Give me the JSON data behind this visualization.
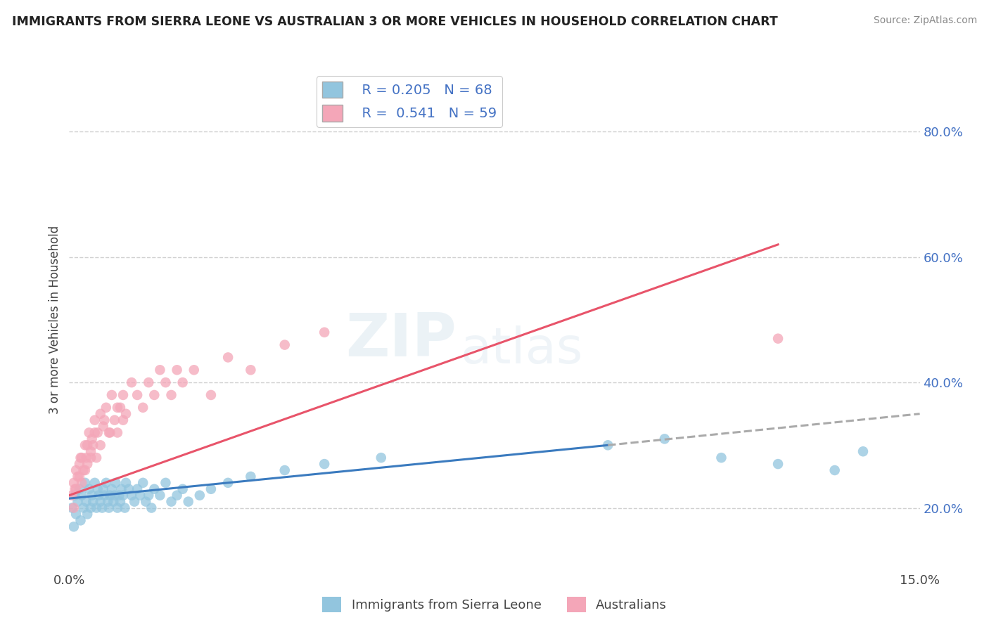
{
  "title": "IMMIGRANTS FROM SIERRA LEONE VS AUSTRALIAN 3 OR MORE VEHICLES IN HOUSEHOLD CORRELATION CHART",
  "source": "Source: ZipAtlas.com",
  "ylabel": "3 or more Vehicles in Household",
  "blue_R": 0.205,
  "blue_N": 68,
  "pink_R": 0.541,
  "pink_N": 59,
  "xlim": [
    0.0,
    15.0
  ],
  "ylim": [
    10.0,
    90.0
  ],
  "yticklabels_right_vals": [
    20,
    40,
    60,
    80
  ],
  "blue_color": "#92c5de",
  "pink_color": "#f4a6b8",
  "blue_line_color": "#3b7bbf",
  "pink_line_color": "#e8546a",
  "dashed_line_color": "#aaaaaa",
  "watermark_top": "ZIP",
  "watermark_bot": "atlas",
  "blue_scatter_x": [
    0.05,
    0.08,
    0.1,
    0.12,
    0.15,
    0.18,
    0.2,
    0.22,
    0.25,
    0.28,
    0.3,
    0.32,
    0.35,
    0.38,
    0.4,
    0.42,
    0.45,
    0.48,
    0.5,
    0.52,
    0.55,
    0.58,
    0.6,
    0.62,
    0.65,
    0.68,
    0.7,
    0.72,
    0.75,
    0.78,
    0.8,
    0.82,
    0.85,
    0.88,
    0.9,
    0.92,
    0.95,
    0.98,
    1.0,
    1.05,
    1.1,
    1.15,
    1.2,
    1.25,
    1.3,
    1.35,
    1.4,
    1.45,
    1.5,
    1.6,
    1.7,
    1.8,
    1.9,
    2.0,
    2.1,
    2.3,
    2.5,
    2.8,
    3.2,
    3.8,
    4.5,
    5.5,
    9.5,
    10.5,
    11.5,
    12.5,
    13.5,
    14.0
  ],
  "blue_scatter_y": [
    20,
    17,
    22,
    19,
    21,
    23,
    18,
    22,
    20,
    24,
    21,
    19,
    23,
    20,
    22,
    21,
    24,
    20,
    23,
    22,
    21,
    20,
    23,
    22,
    24,
    21,
    20,
    22,
    23,
    21,
    22,
    24,
    20,
    22,
    21,
    23,
    22,
    20,
    24,
    23,
    22,
    21,
    23,
    22,
    24,
    21,
    22,
    20,
    23,
    22,
    24,
    21,
    22,
    23,
    21,
    22,
    23,
    24,
    25,
    26,
    27,
    28,
    30,
    31,
    28,
    27,
    26,
    29
  ],
  "pink_scatter_x": [
    0.05,
    0.08,
    0.1,
    0.12,
    0.15,
    0.18,
    0.2,
    0.22,
    0.25,
    0.28,
    0.3,
    0.32,
    0.35,
    0.38,
    0.4,
    0.42,
    0.45,
    0.48,
    0.5,
    0.55,
    0.6,
    0.65,
    0.7,
    0.75,
    0.8,
    0.85,
    0.9,
    0.95,
    1.0,
    1.1,
    1.2,
    1.3,
    1.4,
    1.5,
    1.6,
    1.7,
    1.8,
    1.9,
    2.0,
    2.2,
    2.5,
    2.8,
    3.2,
    3.8,
    4.5,
    0.08,
    0.12,
    0.18,
    0.22,
    0.28,
    0.32,
    0.38,
    0.45,
    0.55,
    0.62,
    0.72,
    0.85,
    0.95,
    12.5
  ],
  "pink_scatter_y": [
    22,
    24,
    23,
    26,
    25,
    27,
    28,
    24,
    26,
    30,
    28,
    27,
    32,
    29,
    31,
    30,
    34,
    28,
    32,
    35,
    33,
    36,
    32,
    38,
    34,
    32,
    36,
    38,
    35,
    40,
    38,
    36,
    40,
    38,
    42,
    40,
    38,
    42,
    40,
    42,
    38,
    44,
    42,
    46,
    48,
    20,
    23,
    25,
    28,
    26,
    30,
    28,
    32,
    30,
    34,
    32,
    36,
    34,
    47
  ],
  "blue_trend_x0": 0.0,
  "blue_trend_y0": 21.5,
  "blue_trend_x1": 9.5,
  "blue_trend_y1": 30.0,
  "blue_dash_x0": 9.5,
  "blue_dash_y0": 30.0,
  "blue_dash_x1": 15.0,
  "blue_dash_y1": 35.0,
  "pink_trend_x0": 0.0,
  "pink_trend_y0": 22.0,
  "pink_trend_x1": 12.5,
  "pink_trend_y1": 62.0
}
